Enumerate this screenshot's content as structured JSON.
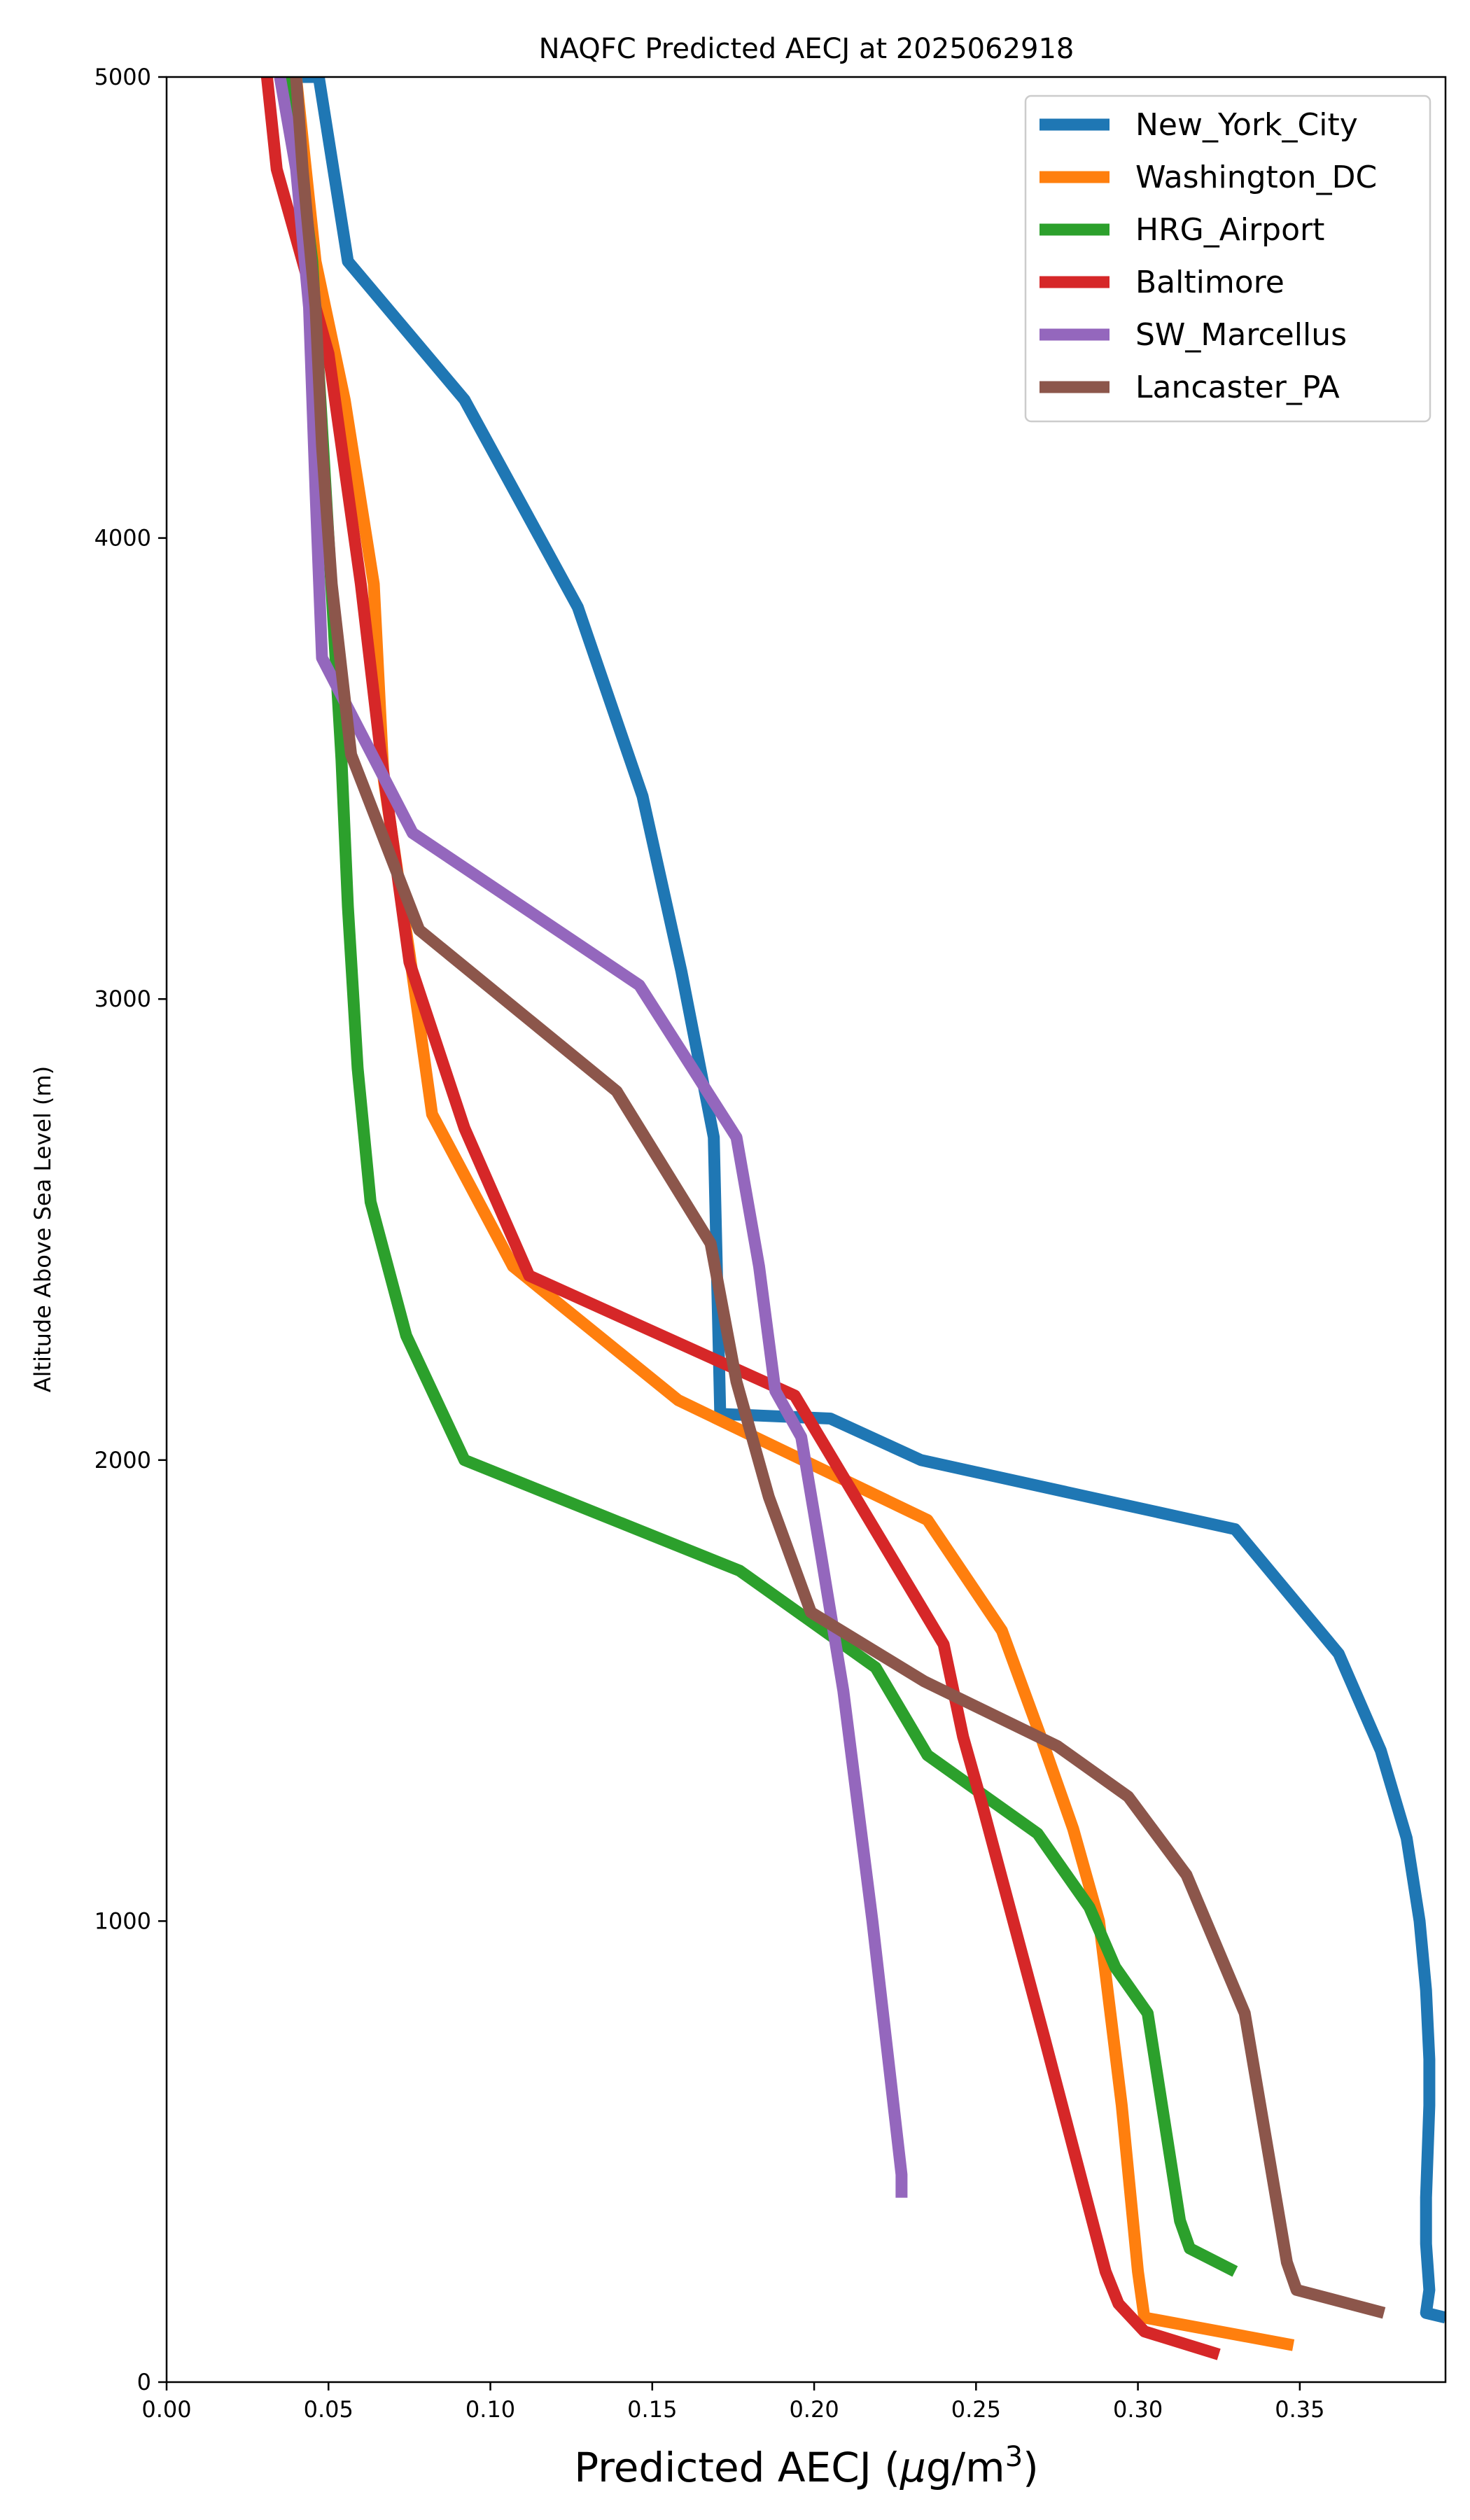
{
  "chart_data": {
    "type": "line",
    "title": "NAQFC Predicted AECJ at 2025062918",
    "xlabel": "Predicted AECJ (μg/m³)",
    "xlabel_main": "Predicted AECJ (",
    "xlabel_unit_mu": "μ",
    "xlabel_unit_g": "g/m",
    "xlabel_unit_exp": "3",
    "xlabel_close": ")",
    "ylabel": "Altitude Above Sea Level (m)",
    "xlim": [
      0.0,
      0.395
    ],
    "ylim": [
      0,
      5000
    ],
    "xticks": [
      "0.00",
      "0.05",
      "0.10",
      "0.15",
      "0.20",
      "0.25",
      "0.30",
      "0.35"
    ],
    "xtick_values": [
      0.0,
      0.05,
      0.1,
      0.15,
      0.2,
      0.25,
      0.3,
      0.35
    ],
    "yticks": [
      "0",
      "1000",
      "2000",
      "3000",
      "4000",
      "5000"
    ],
    "ytick_values": [
      0,
      1000,
      2000,
      3000,
      4000,
      5000
    ],
    "grid": false,
    "legend_position": "top-right",
    "series": [
      {
        "name": "New_York_City",
        "color": "#1f77b4",
        "x": [
          0.395,
          0.389,
          0.39,
          0.389,
          0.389,
          0.39,
          0.39,
          0.389,
          0.387,
          0.383,
          0.375,
          0.362,
          0.33,
          0.233,
          0.205,
          0.171,
          0.169,
          0.159,
          0.147,
          0.127,
          0.092,
          0.056,
          0.047,
          0.04
        ],
        "y": [
          140,
          150,
          200,
          300,
          400,
          600,
          700,
          850,
          1000,
          1180,
          1370,
          1580,
          1850,
          2000,
          2090,
          2100,
          2700,
          3060,
          3440,
          3850,
          4300,
          4600,
          5000,
          5000
        ]
      },
      {
        "name": "Washington_DC",
        "color": "#ff7f0e",
        "x": [
          0.348,
          0.302,
          0.3,
          0.295,
          0.288,
          0.28,
          0.27,
          0.258,
          0.235,
          0.158,
          0.107,
          0.082,
          0.075,
          0.067,
          0.064,
          0.055,
          0.046,
          0.04
        ],
        "y": [
          80,
          140,
          240,
          600,
          1000,
          1200,
          1400,
          1630,
          1870,
          2130,
          2420,
          2750,
          3100,
          3480,
          3900,
          4300,
          4600,
          5000
        ]
      },
      {
        "name": "HRG_Airport",
        "color": "#2ca02c",
        "x": [
          0.33,
          0.316,
          0.313,
          0.303,
          0.293,
          0.285,
          0.269,
          0.235,
          0.219,
          0.177,
          0.092,
          0.074,
          0.063,
          0.059,
          0.056,
          0.054,
          0.05,
          0.045,
          0.038
        ],
        "y": [
          240,
          290,
          350,
          800,
          900,
          1030,
          1190,
          1360,
          1550,
          1760,
          2000,
          2270,
          2560,
          2850,
          3200,
          3520,
          4000,
          4600,
          5000
        ]
      },
      {
        "name": "Baltimore",
        "color": "#d62728",
        "x": [
          0.325,
          0.302,
          0.294,
          0.29,
          0.271,
          0.252,
          0.246,
          0.24,
          0.194,
          0.112,
          0.092,
          0.075,
          0.066,
          0.06,
          0.05,
          0.034,
          0.031
        ],
        "y": [
          60,
          110,
          170,
          240,
          750,
          1250,
          1400,
          1600,
          2140,
          2400,
          2720,
          3080,
          3540,
          3900,
          4400,
          4800,
          5000
        ]
      },
      {
        "name": "SW_Marcellus",
        "color": "#9467bd",
        "x": [
          0.227,
          0.227,
          0.218,
          0.209,
          0.202,
          0.196,
          0.188,
          0.183,
          0.176,
          0.146,
          0.076,
          0.048,
          0.046,
          0.044,
          0.04,
          0.035
        ],
        "y": [
          400,
          450,
          1000,
          1500,
          1800,
          2050,
          2150,
          2420,
          2700,
          3030,
          3360,
          3740,
          4100,
          4500,
          4800,
          5000
        ]
      },
      {
        "name": "Lancaster_PA",
        "color": "#8c564b",
        "x": [
          0.376,
          0.349,
          0.346,
          0.333,
          0.324,
          0.315,
          0.297,
          0.275,
          0.234,
          0.199,
          0.186,
          0.176,
          0.168,
          0.139,
          0.078,
          0.057,
          0.051,
          0.048,
          0.046,
          0.042,
          0.04
        ],
        "y": [
          150,
          200,
          260,
          800,
          950,
          1100,
          1270,
          1380,
          1520,
          1670,
          1920,
          2170,
          2470,
          2800,
          3150,
          3530,
          3900,
          4200,
          4500,
          4800,
          5000
        ]
      }
    ]
  }
}
